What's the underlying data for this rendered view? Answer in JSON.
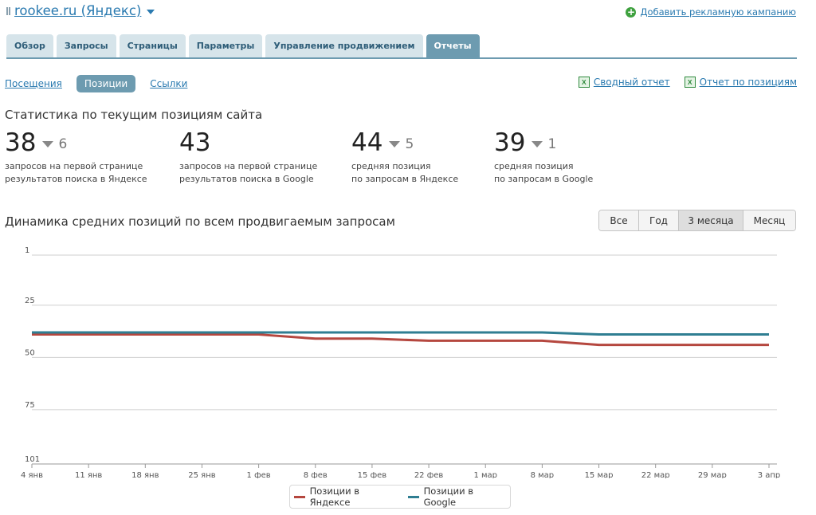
{
  "header": {
    "site_title": "rookee.ru (Яндекс)",
    "add_campaign_label": "Добавить рекламную кампанию"
  },
  "tabs": [
    {
      "label": "Обзор"
    },
    {
      "label": "Запросы"
    },
    {
      "label": "Страницы"
    },
    {
      "label": "Параметры"
    },
    {
      "label": "Управление продвижением"
    },
    {
      "label": "Отчеты",
      "active": true
    }
  ],
  "subnav": {
    "visits": "Посещения",
    "positions": "Позиции",
    "links": "Ссылки"
  },
  "reports": {
    "summary": "Сводный отчет",
    "positions": "Отчет по позициям"
  },
  "stats": {
    "title": "Статистика по текущим позициям сайта",
    "items": [
      {
        "value": "38",
        "delta": "6",
        "desc1": "запросов на первой странице",
        "desc2": "результатов поиска в Яндексе"
      },
      {
        "value": "43",
        "delta": "",
        "desc1": "запросов на первой странице",
        "desc2": "результатов поиска в Google"
      },
      {
        "value": "44",
        "delta": "5",
        "desc1": "средняя позиция",
        "desc2": "по запросам в Яндексе"
      },
      {
        "value": "39",
        "delta": "1",
        "desc1": "средняя позиция",
        "desc2": "по запросам в Google"
      }
    ]
  },
  "dynamics": {
    "title": "Динамика средних позиций по всем продвигаемым запросам",
    "ranges": [
      "Все",
      "Год",
      "3 месяца",
      "Месяц"
    ],
    "active_range": "3 месяца"
  },
  "colors": {
    "yandex": "#b5473f",
    "google": "#2f7e92",
    "accent": "#6d9bb0",
    "link": "#2a7ab0"
  },
  "chart_data": {
    "type": "line",
    "y_reversed": true,
    "ylim": [
      1,
      101
    ],
    "yticks": [
      "1",
      "25",
      "50",
      "75",
      "101"
    ],
    "categories": [
      "4 янв",
      "11 янв",
      "18 янв",
      "25 янв",
      "1 фев",
      "8 фев",
      "15 фев",
      "22 фев",
      "1 мар",
      "8 мар",
      "15 мар",
      "22 мар",
      "29 мар",
      "3 апр"
    ],
    "series": [
      {
        "name": "Позиции в Яндексе",
        "color": "#b5473f",
        "values": [
          39,
          39,
          39,
          39,
          39,
          41,
          41,
          42,
          42,
          42,
          44,
          44,
          44,
          44
        ]
      },
      {
        "name": "Позиции в Google",
        "color": "#2f7e92",
        "values": [
          38,
          38,
          38,
          38,
          38,
          38,
          38,
          38,
          38,
          38,
          39,
          39,
          39,
          39
        ]
      }
    ],
    "grid": true,
    "legend": "bottom-center"
  }
}
